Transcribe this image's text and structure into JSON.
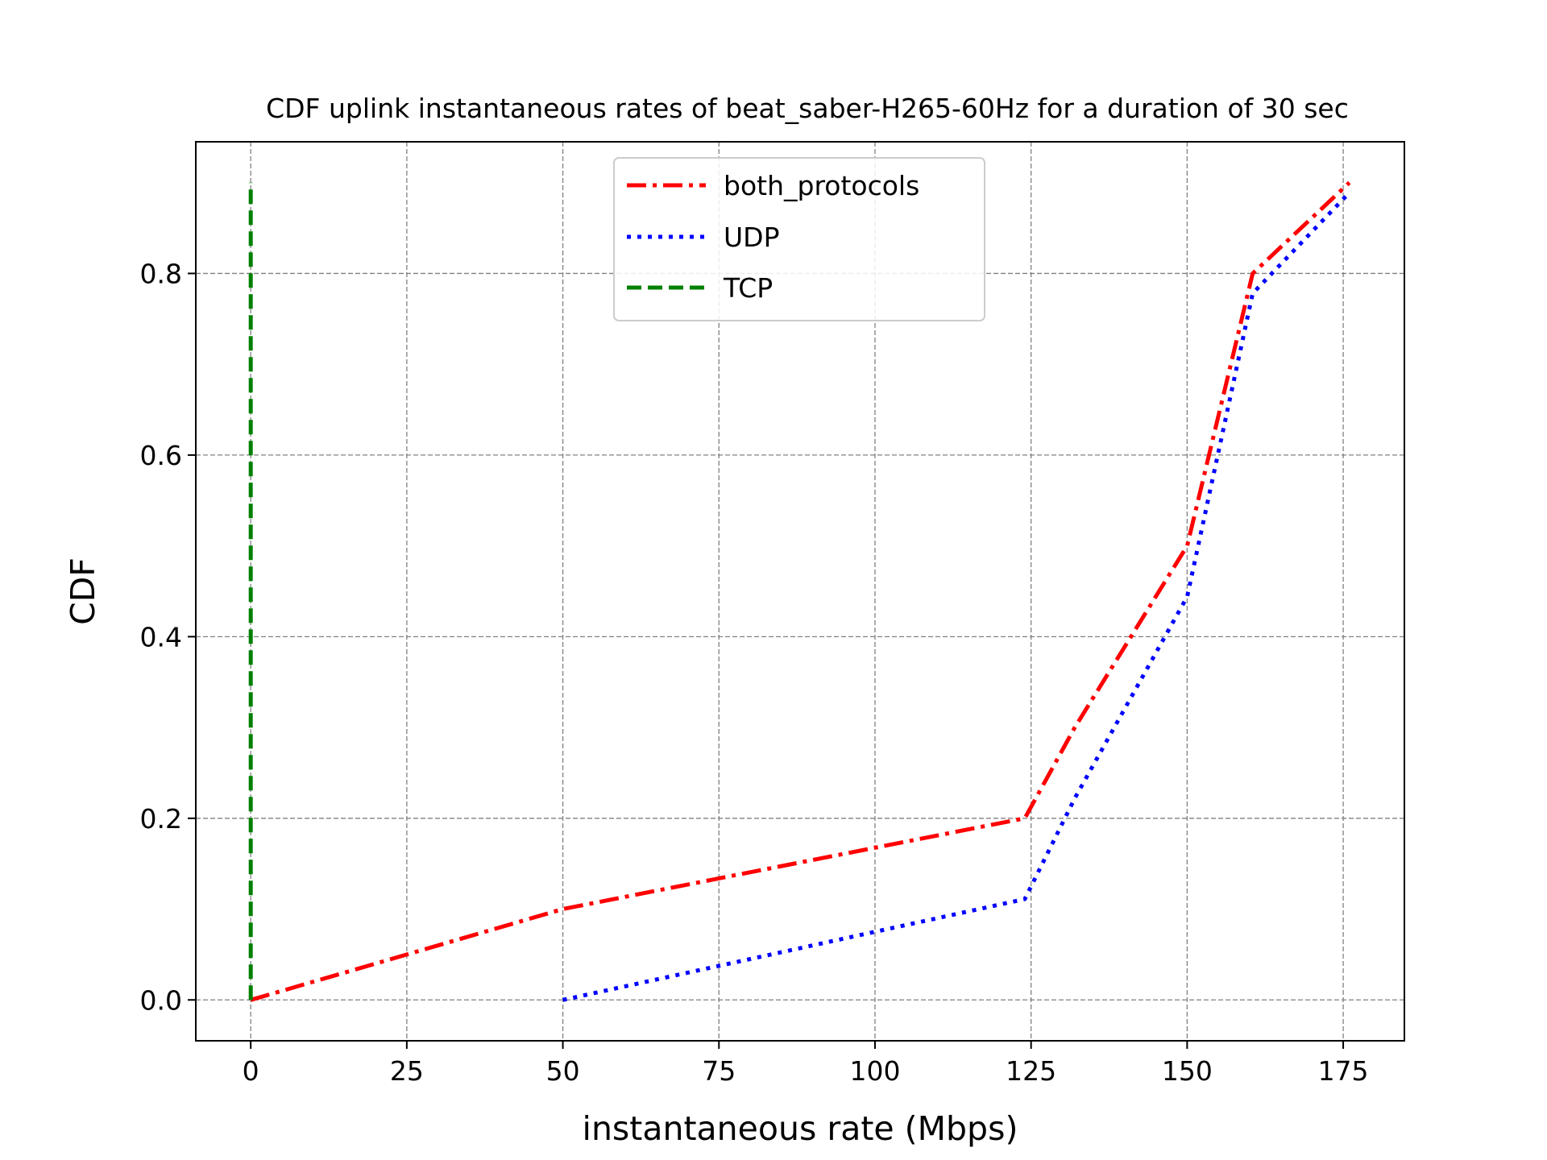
{
  "chart_data": {
    "type": "line",
    "title": "CDF uplink instantaneous rates of beat_saber-H265-60Hz for a duration of 30 sec",
    "xlabel": "instantaneous rate (Mbps)",
    "ylabel": "CDF",
    "xlim": [
      -8.8,
      184.8
    ],
    "ylim": [
      -0.045,
      0.945
    ],
    "xticks": [
      0,
      25,
      50,
      75,
      100,
      125,
      150,
      175
    ],
    "yticks": [
      0.0,
      0.2,
      0.4,
      0.6,
      0.8
    ],
    "xtick_labels": [
      "0",
      "25",
      "50",
      "75",
      "100",
      "125",
      "150",
      "175"
    ],
    "ytick_labels": [
      "0.0",
      "0.2",
      "0.4",
      "0.6",
      "0.8"
    ],
    "grid": true,
    "legend_position": "upper-center",
    "series": [
      {
        "name": "both_protocols",
        "color": "#ff0000",
        "style": "dashdot",
        "x": [
          0,
          50,
          124,
          132,
          150,
          160.5,
          176
        ],
        "y": [
          0.0,
          0.1,
          0.2,
          0.3,
          0.5,
          0.8,
          0.9
        ]
      },
      {
        "name": "UDP",
        "color": "#0000ff",
        "style": "dotted",
        "x": [
          50,
          124,
          132,
          150,
          160.5,
          176
        ],
        "y": [
          0.0,
          0.111,
          0.222,
          0.444,
          0.778,
          0.889
        ]
      },
      {
        "name": "TCP",
        "color": "#008000",
        "style": "dashed",
        "x": [
          0,
          0
        ],
        "y": [
          0.0,
          0.9
        ]
      }
    ]
  }
}
